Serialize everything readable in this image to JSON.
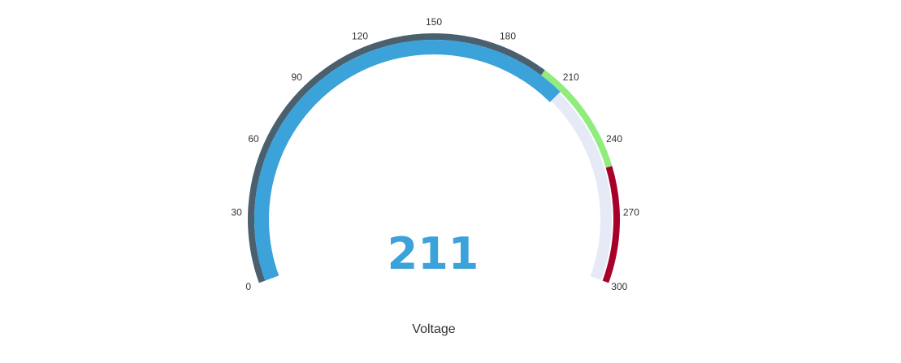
{
  "chart_data": {
    "type": "gauge",
    "title": "Voltage",
    "value": 211,
    "value_label": "211",
    "min": 0,
    "max": 300,
    "ticks": [
      "0",
      "30",
      "60",
      "90",
      "120",
      "150",
      "180",
      "210",
      "240",
      "270",
      "300"
    ],
    "bands": [
      {
        "from": 0,
        "to": 200,
        "color": "#4b606e"
      },
      {
        "from": 200,
        "to": 250,
        "color": "#90ec7d"
      },
      {
        "from": 250,
        "to": 300,
        "color": "#a6002b"
      }
    ],
    "colors": {
      "value_bar": "#3ba2da",
      "track": "#e5eaf6",
      "value_text": "#3ba2da"
    }
  }
}
